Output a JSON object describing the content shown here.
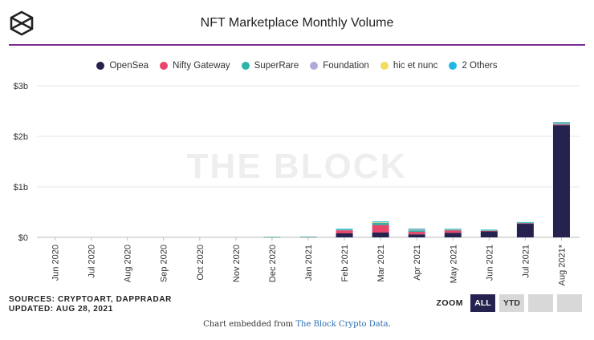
{
  "title": "NFT Marketplace Monthly Volume",
  "watermark": "THE BLOCK",
  "sources": "SOURCES: CRYPTOART, DAPPRADAR",
  "updated": "UPDATED: AUG 28, 2021",
  "zoom": {
    "label": "ZOOM",
    "buttons": [
      "ALL",
      "YTD",
      "",
      ""
    ],
    "active": "ALL"
  },
  "footer": {
    "prefix": "Chart embedded from ",
    "link_text": "The Block Crypto Data",
    "suffix": "."
  },
  "colors": {
    "brand": "#7b2d8e",
    "navy": "#25224f"
  },
  "chart_data": {
    "type": "bar",
    "stacked": true,
    "title": "NFT Marketplace Monthly Volume",
    "categories": [
      "Jun 2020",
      "Jul 2020",
      "Aug 2020",
      "Sep 2020",
      "Oct 2020",
      "Nov 2020",
      "Dec 2020",
      "Jan 2021",
      "Feb 2021",
      "Mar 2021",
      "Apr 2021",
      "May 2021",
      "Jun 2021",
      "Jul 2021",
      "Aug 2021*"
    ],
    "ylim": [
      0,
      3000000000
    ],
    "yticks": [
      0,
      1000000000,
      2000000000,
      3000000000
    ],
    "ytick_labels": [
      "$0",
      "$1b",
      "$2b",
      "$3b"
    ],
    "grid": true,
    "legend_position": "top-center",
    "series": [
      {
        "name": "OpenSea",
        "color": "#25224f",
        "values": [
          0,
          0,
          0,
          0,
          0,
          0,
          0,
          0,
          80000000,
          95000000,
          60000000,
          90000000,
          125000000,
          275000000,
          2220000000
        ]
      },
      {
        "name": "Nifty Gateway",
        "color": "#e8456b",
        "values": [
          0,
          0,
          0,
          0,
          0,
          0,
          8000000,
          10000000,
          60000000,
          150000000,
          50000000,
          50000000,
          5000000,
          5000000,
          15000000
        ]
      },
      {
        "name": "SuperRare",
        "color": "#2cb5a8",
        "values": [
          0,
          0,
          0,
          0,
          0,
          0,
          2000000,
          3000000,
          15000000,
          45000000,
          30000000,
          10000000,
          10000000,
          10000000,
          20000000
        ]
      },
      {
        "name": "Foundation",
        "color": "#b3a8d9",
        "values": [
          0,
          0,
          0,
          0,
          0,
          0,
          0,
          0,
          12000000,
          15000000,
          25000000,
          10000000,
          5000000,
          5000000,
          15000000
        ]
      },
      {
        "name": "hic et nunc",
        "color": "#f2dc5d",
        "values": [
          0,
          0,
          0,
          0,
          0,
          0,
          0,
          0,
          0,
          1000000,
          5000000,
          5000000,
          5000000,
          5000000,
          10000000
        ]
      },
      {
        "name": "2 Others",
        "color": "#1fb8e6",
        "values": [
          0,
          0,
          0,
          0,
          0,
          0,
          0,
          0,
          3000000,
          10000000,
          5000000,
          5000000,
          3000000,
          3000000,
          5000000
        ]
      }
    ]
  }
}
